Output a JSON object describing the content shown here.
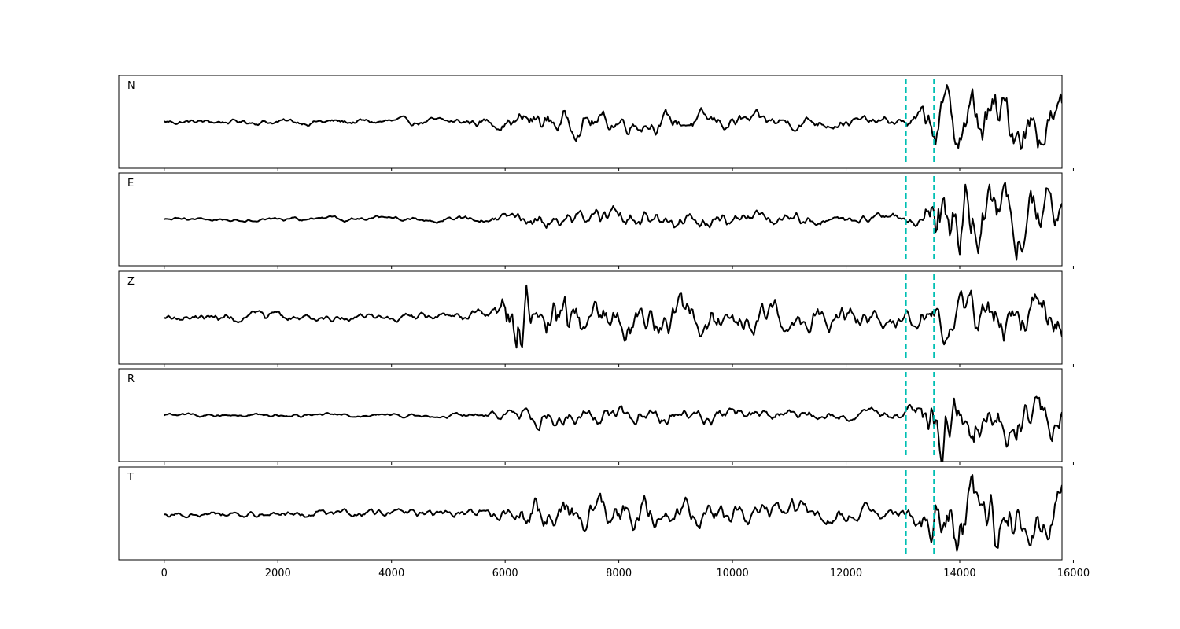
{
  "chart_data": {
    "type": "line",
    "layout": "stacked-panels",
    "shared_x": true,
    "xlim": [
      -800,
      15800
    ],
    "x_ticks": [
      0,
      2000,
      4000,
      6000,
      8000,
      10000,
      12000,
      14000,
      16000
    ],
    "x_tick_labels": [
      "0",
      "2000",
      "4000",
      "6000",
      "8000",
      "10000",
      "12000",
      "14000",
      "16000"
    ],
    "ylim": [
      -1,
      1
    ],
    "grid": false,
    "y_ticks_visible": false,
    "colors": {
      "trace": "#000000",
      "marker": "#00bfb3"
    },
    "markers": [
      {
        "x": 13050,
        "style": "dashed",
        "color": "#00bfb3"
      },
      {
        "x": 13550,
        "style": "dashed",
        "color": "#00bfb3"
      }
    ],
    "sample_step": 25,
    "series": [
      {
        "name": "N",
        "envelope_x": [
          0,
          1000,
          3000,
          5000,
          6100,
          6400,
          8000,
          10000,
          12000,
          13000,
          13300,
          13600,
          14500,
          15800
        ],
        "envelope_y": [
          0.06,
          0.06,
          0.07,
          0.08,
          0.15,
          0.3,
          0.22,
          0.18,
          0.12,
          0.1,
          0.25,
          0.6,
          0.75,
          0.55
        ]
      },
      {
        "name": "E",
        "envelope_x": [
          0,
          1000,
          3000,
          5000,
          6100,
          6400,
          8000,
          10000,
          12000,
          13000,
          13300,
          13600,
          14500,
          15800
        ],
        "envelope_y": [
          0.04,
          0.04,
          0.05,
          0.06,
          0.1,
          0.18,
          0.22,
          0.17,
          0.1,
          0.1,
          0.2,
          0.85,
          0.7,
          0.6
        ]
      },
      {
        "name": "Z",
        "envelope_x": [
          0,
          1000,
          3000,
          5000,
          5800,
          6200,
          6700,
          8000,
          10000,
          12000,
          13000,
          13600,
          14500,
          15800
        ],
        "envelope_y": [
          0.08,
          0.12,
          0.08,
          0.1,
          0.2,
          0.85,
          0.6,
          0.45,
          0.35,
          0.25,
          0.22,
          0.4,
          0.55,
          0.45
        ]
      },
      {
        "name": "R",
        "envelope_x": [
          0,
          1000,
          3000,
          5000,
          6100,
          6400,
          8000,
          10000,
          12000,
          13000,
          13300,
          13600,
          14500,
          15800
        ],
        "envelope_y": [
          0.04,
          0.04,
          0.04,
          0.05,
          0.1,
          0.22,
          0.2,
          0.15,
          0.1,
          0.12,
          0.35,
          0.8,
          0.6,
          0.45
        ]
      },
      {
        "name": "T",
        "envelope_x": [
          0,
          1000,
          3000,
          5000,
          6100,
          6400,
          8000,
          10000,
          12000,
          13000,
          13300,
          13600,
          14500,
          15800
        ],
        "envelope_y": [
          0.07,
          0.07,
          0.08,
          0.1,
          0.15,
          0.4,
          0.35,
          0.25,
          0.18,
          0.15,
          0.35,
          0.7,
          0.75,
          0.55
        ]
      }
    ]
  }
}
